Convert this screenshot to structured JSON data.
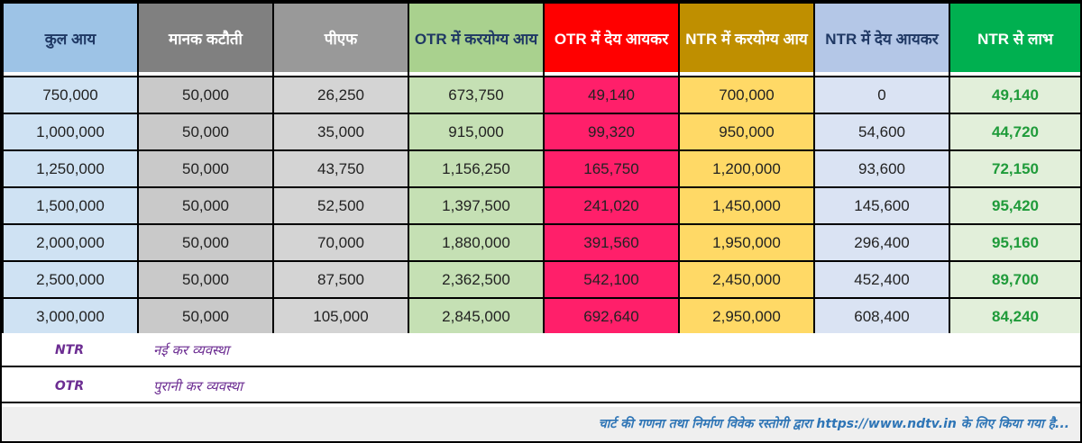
{
  "colors": {
    "col1_header": "#9dc3e6",
    "col1_cell": "#cfe2f3",
    "col2_header": "#808080",
    "col2_cell": "#c9c9c9",
    "col3_header": "#999999",
    "col3_cell": "#d4d4d4",
    "col4_header": "#a9d18e",
    "col4_cell": "#c5e0b4",
    "col5_header": "#ff0000",
    "col5_cell": "#ff1f6a",
    "col6_header": "#bf8f00",
    "col6_cell": "#ffd966",
    "col7_header": "#b4c7e7",
    "col7_cell": "#dae3f3",
    "col8_header": "#00b050",
    "col8_cell": "#e2efda",
    "benefit_text": "#1f9b3a",
    "legend_text": "#6c2d92",
    "footer_text": "#2e75b6"
  },
  "headers": [
    "कुल आय",
    "मानक कटौती",
    "पीएफ",
    "OTR में करयोग्य आय",
    "OTR में देय आयकर",
    "NTR में करयोग्य आय",
    "NTR में देय आयकर",
    "NTR से लाभ"
  ],
  "rows": [
    [
      "750,000",
      "50,000",
      "26,250",
      "673,750",
      "49,140",
      "700,000",
      "0",
      "49,140"
    ],
    [
      "1,000,000",
      "50,000",
      "35,000",
      "915,000",
      "99,320",
      "950,000",
      "54,600",
      "44,720"
    ],
    [
      "1,250,000",
      "50,000",
      "43,750",
      "1,156,250",
      "165,750",
      "1,200,000",
      "93,600",
      "72,150"
    ],
    [
      "1,500,000",
      "50,000",
      "52,500",
      "1,397,500",
      "241,020",
      "1,450,000",
      "145,600",
      "95,420"
    ],
    [
      "2,000,000",
      "50,000",
      "70,000",
      "1,880,000",
      "391,560",
      "1,950,000",
      "296,400",
      "95,160"
    ],
    [
      "2,500,000",
      "50,000",
      "87,500",
      "2,362,500",
      "542,100",
      "2,450,000",
      "452,400",
      "89,700"
    ],
    [
      "3,000,000",
      "50,000",
      "105,000",
      "2,845,000",
      "692,640",
      "2,950,000",
      "608,400",
      "84,240"
    ]
  ],
  "legend": [
    {
      "abbr": "NTR",
      "text": "नई कर व्यवस्था"
    },
    {
      "abbr": "OTR",
      "text": "पुरानी कर व्यवस्था"
    }
  ],
  "footer": "चार्ट की गणना तथा निर्माण विवेक रस्तोगी द्वारा https://www.ndtv.in के लिए किया गया है..."
}
